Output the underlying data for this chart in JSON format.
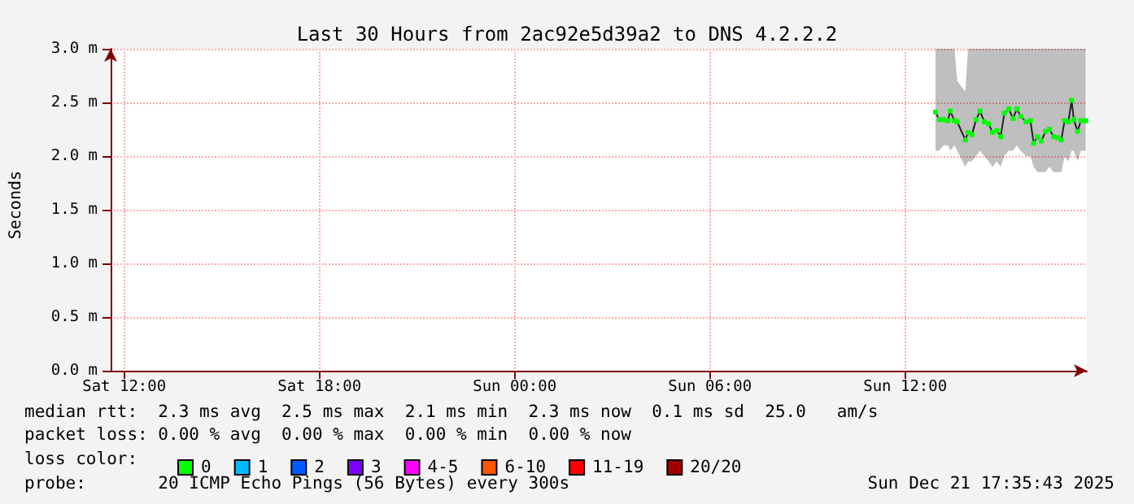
{
  "chart_data": {
    "type": "line",
    "title": "Last 30 Hours from 2ac92e5d39a2 to DNS 4.2.2.2",
    "ylabel": "Seconds",
    "x": [
      "2025-12-21T12:56",
      "2025-12-21T13:03",
      "2025-12-21T13:11",
      "2025-12-21T13:19",
      "2025-12-21T13:23",
      "2025-12-21T13:31",
      "2025-12-21T13:36",
      "2025-12-21T13:51",
      "2025-12-21T13:56",
      "2025-12-21T14:03",
      "2025-12-21T14:11",
      "2025-12-21T14:18",
      "2025-12-21T14:26",
      "2025-12-21T14:34",
      "2025-12-21T14:41",
      "2025-12-21T14:49",
      "2025-12-21T14:56",
      "2025-12-21T15:03",
      "2025-12-21T15:11",
      "2025-12-21T15:19",
      "2025-12-21T15:26",
      "2025-12-21T15:33",
      "2025-12-21T15:43",
      "2025-12-21T15:51",
      "2025-12-21T15:57",
      "2025-12-21T16:04",
      "2025-12-21T16:11",
      "2025-12-21T16:19",
      "2025-12-21T16:26",
      "2025-12-21T16:34",
      "2025-12-21T16:41",
      "2025-12-21T16:48",
      "2025-12-21T16:54",
      "2025-12-21T17:01",
      "2025-12-21T17:07",
      "2025-12-21T17:11",
      "2025-12-21T17:18",
      "2025-12-21T17:24",
      "2025-12-21T17:33"
    ],
    "series": [
      {
        "name": "0",
        "color": "#00ff00",
        "values": [
          2.41,
          2.34,
          2.34,
          2.33,
          2.42,
          2.33,
          2.32,
          2.15,
          2.22,
          2.2,
          2.34,
          2.42,
          2.32,
          2.3,
          2.22,
          2.24,
          2.18,
          2.4,
          2.44,
          2.35,
          2.44,
          2.37,
          2.32,
          2.33,
          2.12,
          2.18,
          2.14,
          2.23,
          2.25,
          2.18,
          2.17,
          2.15,
          2.33,
          2.32,
          2.52,
          2.34,
          2.23,
          2.33,
          2.33
        ],
        "lower": [
          2.05,
          2.05,
          2.1,
          2.1,
          2.05,
          2.1,
          2.05,
          1.9,
          1.95,
          1.95,
          2.0,
          2.05,
          2.0,
          1.95,
          1.9,
          1.95,
          1.9,
          2.0,
          2.05,
          2.05,
          2.1,
          2.05,
          2.0,
          2.0,
          1.9,
          1.85,
          1.85,
          1.85,
          1.9,
          1.85,
          1.85,
          1.85,
          2.0,
          1.95,
          2.05,
          2.05,
          1.95,
          2.05,
          2.05
        ],
        "upper": [
          3.0,
          3.0,
          3.0,
          3.0,
          3.0,
          3.0,
          2.7,
          2.6,
          3.0,
          3.0,
          3.0,
          3.0,
          3.0,
          3.0,
          3.0,
          3.0,
          3.0,
          3.0,
          3.0,
          3.0,
          3.0,
          3.0,
          3.0,
          3.0,
          3.0,
          3.0,
          3.0,
          3.0,
          3.0,
          3.0,
          3.0,
          3.0,
          3.0,
          3.0,
          3.0,
          3.0,
          3.0,
          3.0,
          3.0
        ]
      },
      {
        "name": "1",
        "color": "#00b8ff",
        "values": [
          null,
          null,
          null,
          null,
          null,
          null,
          null,
          null,
          null,
          null,
          null,
          null,
          null,
          null,
          null,
          null,
          null,
          null,
          null,
          null,
          null,
          null,
          null,
          null,
          null,
          null,
          null,
          null,
          null,
          null,
          null,
          null,
          null,
          null,
          null,
          null,
          null,
          null,
          null
        ]
      },
      {
        "name": "2",
        "color": "#0059ff",
        "values": [
          null,
          null,
          null,
          null,
          null,
          null,
          null,
          null,
          null,
          null,
          null,
          null,
          null,
          null,
          null,
          null,
          null,
          null,
          null,
          null,
          null,
          null,
          null,
          null,
          null,
          null,
          null,
          null,
          null,
          null,
          null,
          null,
          null,
          null,
          null,
          null,
          null,
          null,
          null
        ]
      },
      {
        "name": "3",
        "color": "#7e00ff",
        "values": [
          null,
          null,
          null,
          null,
          null,
          null,
          null,
          null,
          null,
          null,
          null,
          null,
          null,
          null,
          null,
          null,
          null,
          null,
          null,
          null,
          null,
          null,
          null,
          null,
          null,
          null,
          null,
          null,
          null,
          null,
          null,
          null,
          null,
          null,
          null,
          null,
          null,
          null,
          null
        ]
      },
      {
        "name": "4-5",
        "color": "#ff00ff",
        "values": [
          null,
          null,
          null,
          null,
          null,
          null,
          null,
          null,
          null,
          null,
          null,
          null,
          null,
          null,
          null,
          null,
          null,
          null,
          null,
          null,
          null,
          null,
          null,
          null,
          null,
          null,
          null,
          null,
          null,
          null,
          null,
          null,
          null,
          null,
          null,
          null,
          null,
          null,
          null
        ]
      },
      {
        "name": "6-10",
        "color": "#ff5500",
        "values": [
          null,
          null,
          null,
          null,
          null,
          null,
          null,
          null,
          null,
          null,
          null,
          null,
          null,
          null,
          null,
          null,
          null,
          null,
          null,
          null,
          null,
          null,
          null,
          null,
          null,
          null,
          null,
          null,
          null,
          null,
          null,
          null,
          null,
          null,
          null,
          null,
          null,
          null,
          null
        ]
      },
      {
        "name": "11-19",
        "color": "#ff0000",
        "values": [
          null,
          null,
          null,
          null,
          null,
          null,
          null,
          null,
          null,
          null,
          null,
          null,
          null,
          null,
          null,
          null,
          null,
          null,
          null,
          null,
          null,
          null,
          null,
          null,
          null,
          null,
          null,
          null,
          null,
          null,
          null,
          null,
          null,
          null,
          null,
          null,
          null,
          null,
          null
        ]
      },
      {
        "name": "20/20",
        "color": "#a10000",
        "values": [
          null,
          null,
          null,
          null,
          null,
          null,
          null,
          null,
          null,
          null,
          null,
          null,
          null,
          null,
          null,
          null,
          null,
          null,
          null,
          null,
          null,
          null,
          null,
          null,
          null,
          null,
          null,
          null,
          null,
          null,
          null,
          null,
          null,
          null,
          null,
          null,
          null,
          null,
          null
        ]
      }
    ],
    "legend_title": "loss color:",
    "legend": "bottom",
    "marker": "square",
    "line_style": "solid",
    "grid": true,
    "xlim": [
      "2025-12-20T11:35",
      "2025-12-21T17:35"
    ],
    "xticks": [
      {
        "value": "2025-12-20T12:00",
        "label": "Sat 12:00"
      },
      {
        "value": "2025-12-20T18:00",
        "label": "Sat 18:00"
      },
      {
        "value": "2025-12-21T00:00",
        "label": "Sun 00:00"
      },
      {
        "value": "2025-12-21T06:00",
        "label": "Sun 06:00"
      },
      {
        "value": "2025-12-21T12:00",
        "label": "Sun 12:00"
      }
    ],
    "ylim": [
      0,
      3
    ],
    "yticks": [
      {
        "value": 0,
        "label": "0.0 m"
      },
      {
        "value": 0.5,
        "label": "0.5 m"
      },
      {
        "value": 1,
        "label": "1.0 m"
      },
      {
        "value": 1.5,
        "label": "1.5 m"
      },
      {
        "value": 2,
        "label": "2.0 m"
      },
      {
        "value": 2.5,
        "label": "2.5 m"
      },
      {
        "value": 3,
        "label": "3.0 m"
      }
    ],
    "annotations": [
      "median rtt:  2.3 ms avg  2.5 ms max  2.1 ms min  2.3 ms now  0.1 ms sd  25.0   am/s",
      "packet loss: 0.00 % avg  0.00 % max  0.00 % min  0.00 % now",
      "probe:       20 ICMP Echo Pings (56 Bytes) every 300s",
      "Sun Dec 21 17:35:43 2025"
    ]
  }
}
